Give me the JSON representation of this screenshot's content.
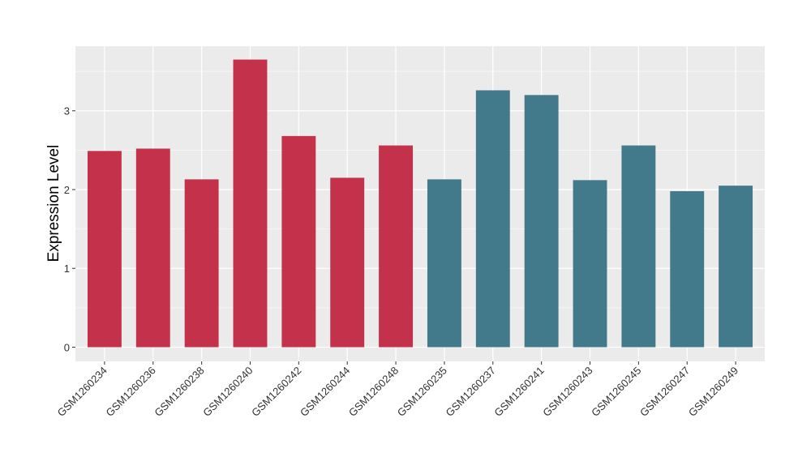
{
  "chart_data": {
    "type": "bar",
    "title": "",
    "xlabel": "",
    "ylabel": "Expression Level",
    "ylim": [
      -0.18,
      3.82
    ],
    "yticks": [
      0,
      1,
      2,
      3
    ],
    "grid": true,
    "legend": "none",
    "categories": [
      "GSM1260234",
      "GSM1260236",
      "GSM1260238",
      "GSM1260240",
      "GSM1260242",
      "GSM1260244",
      "GSM1260248",
      "GSM1260235",
      "GSM1260237",
      "GSM1260241",
      "GSM1260243",
      "GSM1260245",
      "GSM1260247",
      "GSM1260249"
    ],
    "values": [
      2.49,
      2.52,
      2.13,
      3.65,
      2.68,
      2.15,
      2.56,
      2.13,
      3.26,
      3.2,
      2.12,
      2.56,
      1.98,
      2.05
    ],
    "groups": [
      0,
      0,
      0,
      0,
      0,
      0,
      0,
      1,
      1,
      1,
      1,
      1,
      1,
      1
    ],
    "colors": [
      "#c3314a",
      "#427a8b"
    ]
  }
}
